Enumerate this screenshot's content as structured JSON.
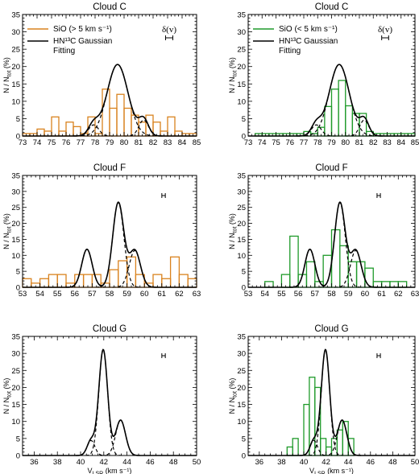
{
  "colors": {
    "sio_fast": "#d9821e",
    "sio_slow": "#1f9a2a",
    "fit": "#000000"
  },
  "legend": {
    "left": {
      "sio_label": "SiO (> 5 km s⁻¹)",
      "fit_label_1": "HN¹³C Gaussian",
      "fit_label_2": "Fitting"
    },
    "right": {
      "sio_label": "SiO (< 5 km s⁻¹)",
      "fit_label_1": "HN¹³C Gaussian",
      "fit_label_2": "Fitting"
    }
  },
  "delta_label": "δ(v)",
  "ylabel": "N / N_tot (%)",
  "xlabel": "V_LSR (km s⁻¹)",
  "chart_data": [
    {
      "type": "bar",
      "title": "Cloud C",
      "sio": "fast",
      "xlim": [
        73,
        85
      ],
      "ylim": [
        0,
        35
      ],
      "xticks": [
        73,
        74,
        75,
        76,
        77,
        78,
        79,
        80,
        81,
        82,
        83,
        84,
        85
      ],
      "yticks": [
        0,
        5,
        10,
        15,
        20,
        25,
        30,
        35
      ],
      "bin_width": 0.5,
      "bin_starts": [
        73,
        73.5,
        74,
        74.5,
        75,
        75.5,
        76,
        76.5,
        77,
        77.5,
        78,
        78.5,
        79,
        79.5,
        80,
        80.5,
        81,
        81.5,
        82,
        82.5,
        83,
        83.5,
        84,
        84.5
      ],
      "values": [
        0.7,
        0.7,
        2,
        1.4,
        5.5,
        1.4,
        4,
        2.7,
        0.7,
        5.5,
        0.7,
        13.5,
        8,
        12,
        8,
        6,
        4,
        6,
        4,
        1.4,
        5.5,
        1.4,
        0.7,
        0.7
      ],
      "fit_components": [
        {
          "amp": 3.2,
          "mu": 77.9,
          "sigma": 0.35
        },
        {
          "amp": 20.6,
          "mu": 79.55,
          "sigma": 0.72
        },
        {
          "amp": 4.6,
          "mu": 81.35,
          "sigma": 0.33
        }
      ],
      "delta_v": 0.5
    },
    {
      "type": "bar",
      "title": "Cloud C",
      "sio": "slow",
      "xlim": [
        73,
        85
      ],
      "ylim": [
        0,
        35
      ],
      "xticks": [
        73,
        74,
        75,
        76,
        77,
        78,
        79,
        80,
        81,
        82,
        83,
        84,
        85
      ],
      "yticks": [
        0,
        5,
        10,
        15,
        20,
        25,
        30,
        35
      ],
      "bin_width": 0.5,
      "bin_starts": [
        73.5,
        74,
        74.5,
        75,
        75.5,
        76,
        76.5,
        77,
        77.5,
        78,
        78.5,
        79,
        79.5,
        80,
        80.5,
        81,
        81.5,
        82,
        82.5,
        83,
        83.5,
        84,
        84.5
      ],
      "values": [
        0.7,
        0.7,
        0.7,
        0.7,
        0.7,
        0.7,
        0.7,
        1.3,
        0.7,
        2.5,
        8.5,
        13.5,
        16,
        8.7,
        6.5,
        6.5,
        1.3,
        0.7,
        0.7,
        0.7,
        0.7,
        0.7,
        0.7
      ],
      "fit_components": [
        {
          "amp": 3.2,
          "mu": 77.9,
          "sigma": 0.35
        },
        {
          "amp": 20.6,
          "mu": 79.55,
          "sigma": 0.72
        },
        {
          "amp": 4.6,
          "mu": 81.35,
          "sigma": 0.33
        }
      ],
      "delta_v": 0.5
    },
    {
      "type": "bar",
      "title": "Cloud F",
      "sio": "fast",
      "xlim": [
        53,
        63
      ],
      "ylim": [
        0,
        35
      ],
      "xticks": [
        53,
        54,
        55,
        56,
        57,
        58,
        59,
        60,
        61,
        62,
        63
      ],
      "yticks": [
        0,
        5,
        10,
        15,
        20,
        25,
        30,
        35
      ],
      "bin_width": 0.5,
      "bin_starts": [
        53,
        53.5,
        54,
        54.5,
        55,
        55.5,
        56,
        56.5,
        57,
        57.5,
        58,
        58.5,
        59,
        59.5,
        60,
        60.5,
        61,
        61.5,
        62,
        62.5
      ],
      "values": [
        2.7,
        1.3,
        2.7,
        4,
        4,
        1.3,
        4,
        4,
        4,
        1.3,
        5.5,
        8.3,
        9.5,
        4,
        1.3,
        4,
        2.7,
        9.5,
        4,
        2.7
      ],
      "fit_components": [
        {
          "amp": 11.9,
          "mu": 56.7,
          "sigma": 0.3
        },
        {
          "amp": 26.5,
          "mu": 58.5,
          "sigma": 0.32
        },
        {
          "amp": 11.5,
          "mu": 59.45,
          "sigma": 0.32
        }
      ],
      "delta_v": 0.2
    },
    {
      "type": "bar",
      "title": "Cloud F",
      "sio": "slow",
      "xlim": [
        53,
        63
      ],
      "ylim": [
        0,
        35
      ],
      "xticks": [
        53,
        54,
        55,
        56,
        57,
        58,
        59,
        60,
        61,
        62,
        63
      ],
      "yticks": [
        0,
        5,
        10,
        15,
        20,
        25,
        30,
        35
      ],
      "bin_width": 0.5,
      "bin_starts": [
        54,
        54.5,
        55,
        55.5,
        56,
        56.5,
        57,
        57.5,
        58,
        58.5,
        59,
        59.5,
        60,
        60.5,
        61,
        61.5,
        62
      ],
      "values": [
        1.8,
        0,
        4,
        16,
        4,
        8,
        1.8,
        10,
        18,
        13,
        8,
        8,
        6,
        1.8,
        1.8,
        1.8,
        1.8
      ],
      "fit_components": [
        {
          "amp": 11.9,
          "mu": 56.7,
          "sigma": 0.3
        },
        {
          "amp": 26.5,
          "mu": 58.5,
          "sigma": 0.32
        },
        {
          "amp": 11.5,
          "mu": 59.45,
          "sigma": 0.32
        }
      ],
      "delta_v": 0.2
    },
    {
      "type": "bar",
      "title": "Cloud G",
      "sio": "fast",
      "xlim": [
        35,
        50
      ],
      "ylim": [
        0,
        35
      ],
      "xticks": [
        36,
        38,
        40,
        42,
        44,
        46,
        48,
        50
      ],
      "yticks": [
        0,
        5,
        10,
        15,
        20,
        25,
        30,
        35
      ],
      "bin_width": 0.5,
      "bin_starts": [],
      "values": [],
      "fit_components": [
        {
          "amp": 4.4,
          "mu": 40.9,
          "sigma": 0.33
        },
        {
          "amp": 31.1,
          "mu": 41.95,
          "sigma": 0.38
        },
        {
          "amp": 10.4,
          "mu": 43.45,
          "sigma": 0.42
        }
      ],
      "delta_v": 0.3
    },
    {
      "type": "bar",
      "title": "Cloud G",
      "sio": "slow",
      "xlim": [
        35,
        50
      ],
      "ylim": [
        0,
        35
      ],
      "xticks": [
        36,
        38,
        40,
        42,
        44,
        46,
        48,
        50
      ],
      "yticks": [
        0,
        5,
        10,
        15,
        20,
        25,
        30,
        35
      ],
      "bin_width": 0.5,
      "bin_starts": [
        38.5,
        39,
        39.5,
        40,
        40.5,
        41,
        41.5,
        42,
        42.5,
        43,
        43.5,
        44
      ],
      "values": [
        2.5,
        5,
        0,
        15,
        23,
        20,
        5,
        2.5,
        5,
        7.5,
        10,
        5
      ],
      "fit_components": [
        {
          "amp": 4.4,
          "mu": 40.9,
          "sigma": 0.33
        },
        {
          "amp": 31.1,
          "mu": 41.95,
          "sigma": 0.38
        },
        {
          "amp": 10.4,
          "mu": 43.45,
          "sigma": 0.42
        }
      ],
      "delta_v": 0.3
    }
  ]
}
